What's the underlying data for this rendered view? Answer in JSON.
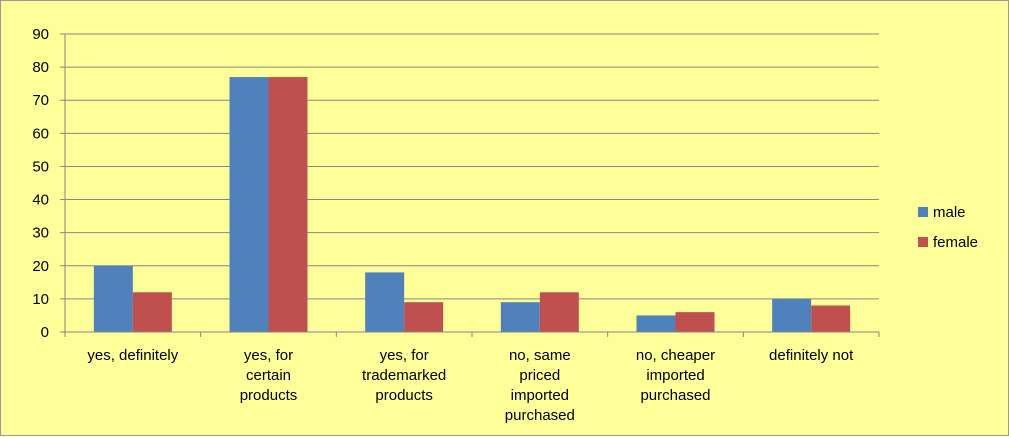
{
  "chart_data": {
    "type": "bar",
    "categories": [
      [
        "yes, definitely"
      ],
      [
        "yes, for",
        "certain",
        "products"
      ],
      [
        "yes, for",
        "trademarked",
        "products"
      ],
      [
        "no, same",
        "priced",
        "imported",
        "purchased"
      ],
      [
        "no, cheaper",
        "imported",
        "purchased"
      ],
      [
        "definitely not"
      ]
    ],
    "series": [
      {
        "name": "male",
        "color": "#4f81bd",
        "values": [
          20,
          77,
          18,
          9,
          5,
          10
        ]
      },
      {
        "name": "female",
        "color": "#c0504d",
        "values": [
          12,
          77,
          9,
          12,
          6,
          8
        ]
      }
    ],
    "ylim": [
      0,
      90
    ],
    "yticks": [
      "0",
      "10",
      "20",
      "30",
      "40",
      "50",
      "60",
      "70",
      "80",
      "90"
    ],
    "grid": true,
    "legend": "right",
    "title": "",
    "xlabel": "",
    "ylabel": ""
  }
}
